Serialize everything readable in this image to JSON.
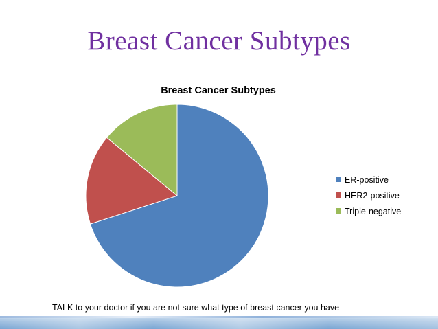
{
  "slide": {
    "title": "Breast Cancer Subtypes",
    "note": "TALK to your doctor if you are not sure what type of breast cancer you have"
  },
  "colors": {
    "title": "#7030a0",
    "er_positive": "#4f81bd",
    "her2_positive": "#c0504d",
    "triple_negative": "#9bbb59"
  },
  "chart_data": {
    "type": "pie",
    "title": "Breast Cancer Subtypes",
    "categories": [
      "ER-positive",
      "HER2-positive",
      "Triple-negative"
    ],
    "values": [
      70,
      16,
      14
    ],
    "colors": [
      "#4f81bd",
      "#c0504d",
      "#9bbb59"
    ],
    "start_angle_deg": 0,
    "direction": "clockwise",
    "legend": "right"
  }
}
